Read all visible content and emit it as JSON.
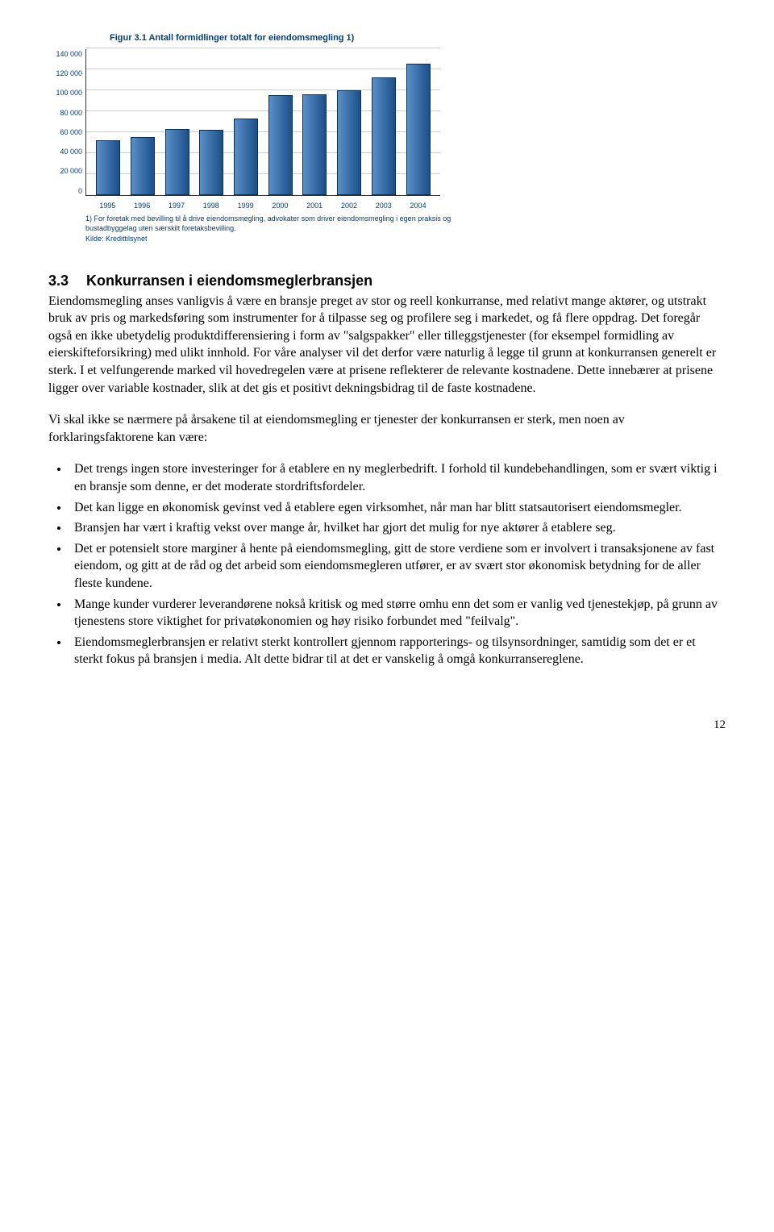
{
  "chart": {
    "title": "Figur 3.1 Antall formidlinger totalt for eiendomsmegling 1)",
    "type": "bar",
    "y_ticks": [
      "140 000",
      "120 000",
      "100 000",
      "80 000",
      "60 000",
      "40 000",
      "20 000",
      "0"
    ],
    "y_max": 140000,
    "x_labels": [
      "1995",
      "1996",
      "1997",
      "1998",
      "1999",
      "2000",
      "2001",
      "2002",
      "2003",
      "2004"
    ],
    "values": [
      52000,
      55000,
      63000,
      62000,
      73000,
      95000,
      96000,
      100000,
      112000,
      125000
    ],
    "bar_color": "#2d6aa8",
    "grid_color": "#cccccc",
    "axis_text_color": "#003d7a",
    "footnote": "1) For foretak med bevilling til å drive eiendomsmegling, advokater som driver eiendomsmegling i egen praksis og bustadbyggelag uten særskilt foretaksbevilling.",
    "source": "Kilde: Kredittilsynet"
  },
  "section": {
    "number": "3.3",
    "title": "Konkurransen i eiendomsmeglerbransjen"
  },
  "para1": "Eiendomsmegling anses vanligvis å være en bransje preget av stor og reell konkurranse, med relativt mange aktører, og utstrakt bruk av pris og markedsføring som instrumenter for å tilpasse seg og profilere seg i markedet, og få flere oppdrag. Det foregår også en ikke ubetydelig produktdifferensiering i form av \"salgspakker\" eller tilleggstjenester (for eksempel formidling av eierskifteforsikring) med ulikt innhold. For våre analyser vil det derfor være naturlig å legge til grunn at konkurransen generelt er sterk. I et velfungerende marked vil hovedregelen være at prisene reflekterer de relevante kostnadene. Dette innebærer at prisene ligger over variable kostnader, slik at det gis et positivt dekningsbidrag til de faste kostnadene.",
  "para2": "Vi skal ikke se nærmere på årsakene til at eiendomsmegling er tjenester der konkurransen er sterk, men noen av forklaringsfaktorene kan være:",
  "bullets": [
    "Det trengs ingen store investeringer for å etablere en ny meglerbedrift. I forhold til kundebehandlingen, som er svært viktig i en bransje som denne, er det moderate stordriftsfordeler.",
    "Det kan ligge en økonomisk gevinst ved å etablere egen virksomhet, når man har blitt statsautorisert eiendomsmegler.",
    "Bransjen har vært i kraftig vekst over mange år, hvilket har gjort det mulig for nye aktører å etablere seg.",
    "Det er potensielt store marginer å hente på eiendomsmegling, gitt de store verdiene som er involvert i transaksjonene av fast eiendom, og gitt at de råd og det arbeid som eiendomsmegleren utfører, er av svært stor økonomisk betydning for de aller fleste kundene.",
    "Mange kunder vurderer leverandørene nokså kritisk og med større omhu enn det som er vanlig ved tjenestekjøp, på grunn av tjenestens store viktighet for privatøkonomien og høy risiko forbundet med \"feilvalg\".",
    "Eiendomsmeglerbransjen er relativt sterkt kontrollert gjennom rapporterings- og tilsynsordninger, samtidig som det er et sterkt fokus på bransjen i media. Alt dette bidrar til at det er vanskelig å omgå konkurransereglene."
  ],
  "page_number": "12"
}
